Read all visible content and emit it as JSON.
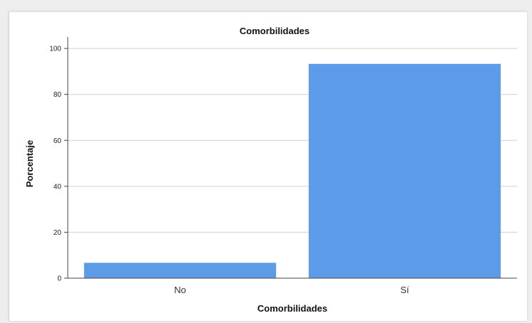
{
  "chart_data": {
    "type": "bar",
    "title": "Comorbilidades",
    "xlabel": "Comorbilidades",
    "ylabel": "Porcentaje",
    "categories": [
      "No",
      "Sí"
    ],
    "values": [
      6.7,
      93.3
    ],
    "ylim": [
      0,
      105
    ],
    "yticks": [
      0,
      20,
      40,
      60,
      80,
      100
    ],
    "grid": true,
    "bar_color": "#5b9be8"
  }
}
